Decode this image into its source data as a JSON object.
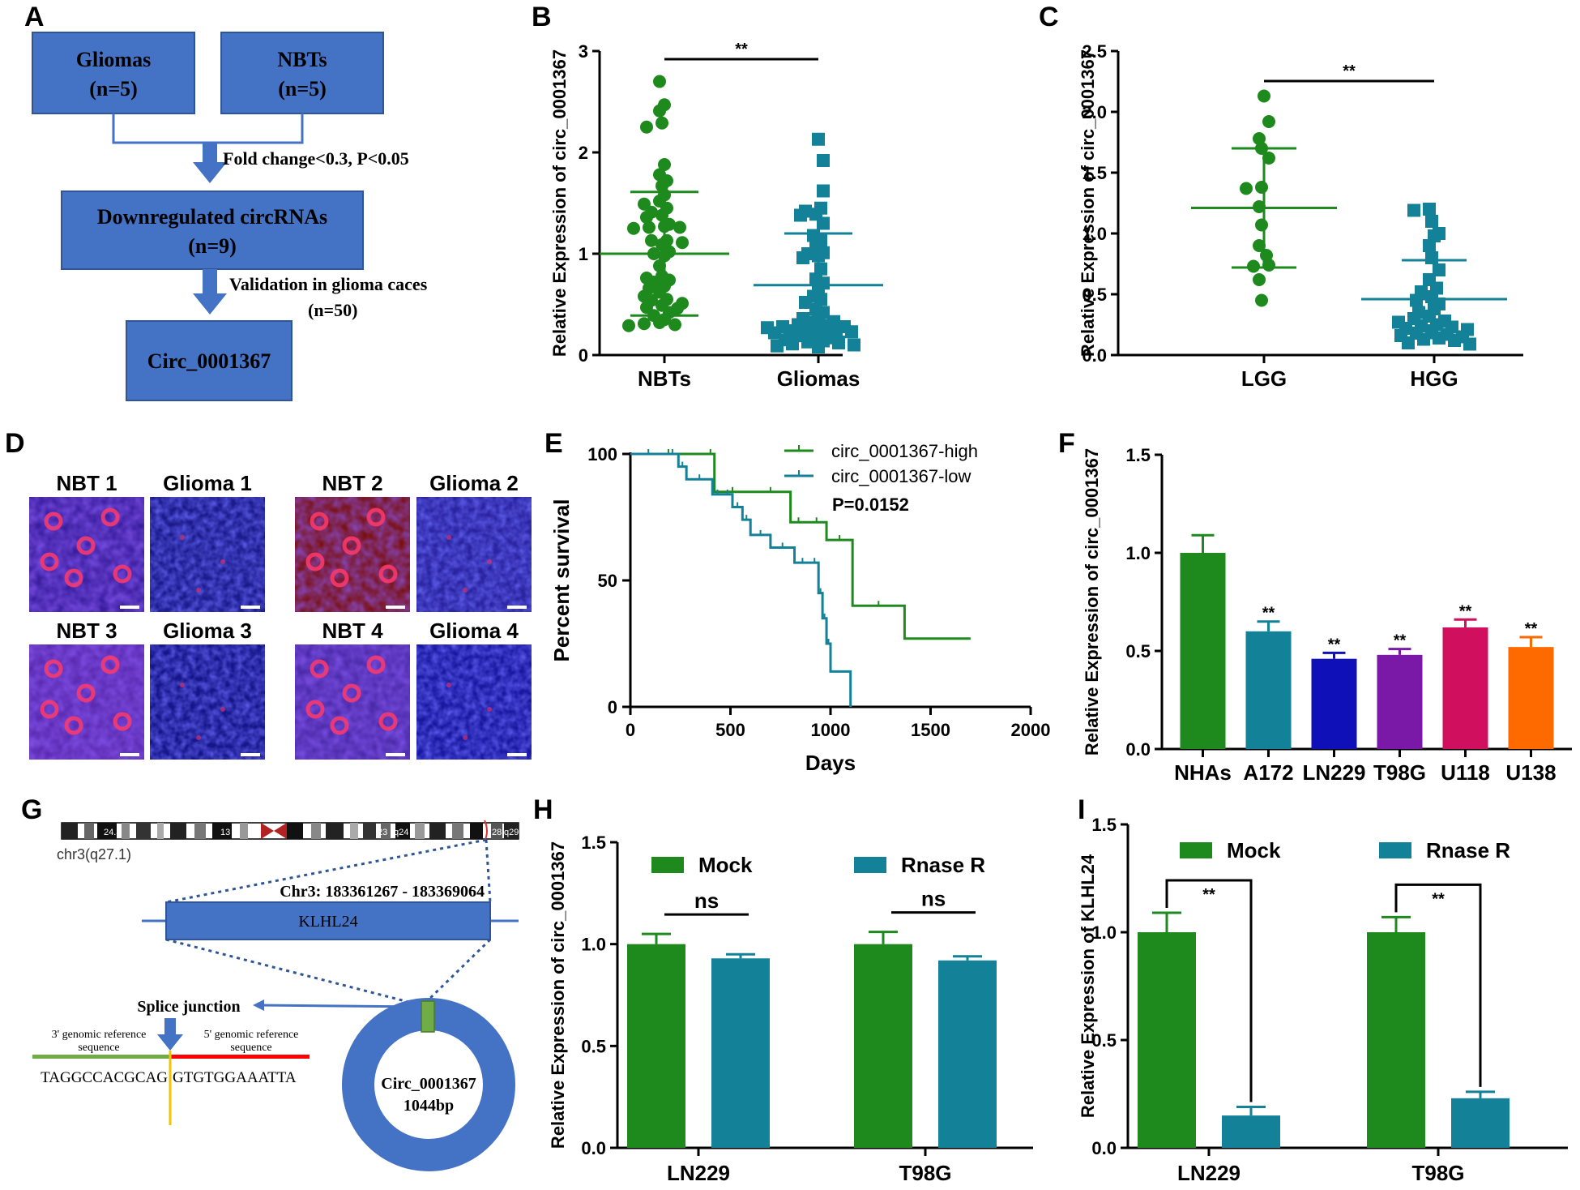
{
  "colors": {
    "green": "#1e8a1e",
    "teal": "#138197",
    "flow_box": "#4472c4",
    "bar_blue": "#1010b8",
    "bar_purple": "#7a18a8",
    "bar_pink": "#d0105e",
    "bar_orange": "#ff6a00",
    "junction_yellow": "#f2c500",
    "ref_green": "#70ad47",
    "ref_red": "#ff0000"
  },
  "panel_labels": [
    "A",
    "B",
    "C",
    "D",
    "E",
    "F",
    "G",
    "H",
    "I"
  ],
  "flowchart": {
    "box1": [
      "Gliomas",
      "(n=5)"
    ],
    "box2": [
      "NBTs",
      "(n=5)"
    ],
    "step1": "Fold change<0.3, P<0.05",
    "box3": [
      "Downregulated circRNAs",
      "(n=9)"
    ],
    "step2": [
      "Validation in glioma caces",
      "(n=50)"
    ],
    "box4": "Circ_0001367"
  },
  "images": {
    "labels": [
      "NBT 1",
      "Glioma 1",
      "NBT 2",
      "Glioma 2",
      "NBT 3",
      "Glioma 3",
      "NBT 4",
      "Glioma 4"
    ]
  },
  "diagram": {
    "chrom_label": "chr3(q27.1)",
    "band_labels": [
      "24.3",
      "13",
      "23",
      "q24",
      "28",
      "q29"
    ],
    "coords": "Chr3: 183361267 - 183369064",
    "gene": "KLHL24",
    "splice_junction": "Splice junction",
    "ref3": [
      "3' genomic reference",
      "sequence"
    ],
    "ref5": [
      "5' genomic reference",
      "sequence"
    ],
    "seq_left": "TAGGCCACGCAG",
    "seq_right": "GTGTGGAAATTA",
    "circ_name": "Circ_0001367",
    "circ_size": "1044bp"
  },
  "chart_data": [
    {
      "panel": "B",
      "type": "scatter",
      "ylabel": "Relative Expression of circ_0001367",
      "ylim": [
        0,
        3
      ],
      "yticks": [
        "0",
        "1",
        "2",
        "3"
      ],
      "categories": [
        "NBTs",
        "Gliomas"
      ],
      "means": [
        1.0,
        0.69
      ],
      "sd": [
        0.61,
        0.51
      ],
      "significance": "**",
      "series": [
        {
          "name": "NBTs",
          "values": [
            2.7,
            2.47,
            2.41,
            2.29,
            2.25,
            1.88,
            1.78,
            1.72,
            1.67,
            1.58,
            1.52,
            1.49,
            1.45,
            1.41,
            1.38,
            1.36,
            1.29,
            1.27,
            1.26,
            1.26,
            1.25,
            1.13,
            1.13,
            1.11,
            1.09,
            1.02,
            1.0,
            0.98,
            0.88,
            0.78,
            0.76,
            0.74,
            0.72,
            0.68,
            0.66,
            0.62,
            0.58,
            0.55,
            0.54,
            0.51,
            0.49,
            0.47,
            0.46,
            0.42,
            0.39,
            0.35,
            0.32,
            0.31,
            0.3,
            0.29
          ]
        },
        {
          "name": "Gliomas",
          "values": [
            2.13,
            1.92,
            1.62,
            1.45,
            1.42,
            1.39,
            1.38,
            1.3,
            1.18,
            1.13,
            1.09,
            1.01,
            1.0,
            0.98,
            0.96,
            0.85,
            0.75,
            0.71,
            0.65,
            0.58,
            0.55,
            0.52,
            0.45,
            0.42,
            0.38,
            0.36,
            0.33,
            0.32,
            0.3,
            0.29,
            0.28,
            0.28,
            0.27,
            0.26,
            0.25,
            0.25,
            0.24,
            0.23,
            0.22,
            0.2,
            0.19,
            0.17,
            0.15,
            0.14,
            0.13,
            0.12,
            0.11,
            0.1,
            0.09,
            0.08
          ]
        }
      ]
    },
    {
      "panel": "C",
      "type": "scatter",
      "ylabel": "Relative Expression of circ_0001367",
      "ylim": [
        0,
        2.5
      ],
      "yticks": [
        "0.0",
        "0.5",
        "1.0",
        "1.5",
        "2.0",
        "2.5"
      ],
      "categories": [
        "LGG",
        "HGG"
      ],
      "means": [
        1.21,
        0.46
      ],
      "sd": [
        0.49,
        0.32
      ],
      "significance": "**",
      "series": [
        {
          "name": "LGG",
          "values": [
            2.13,
            1.92,
            1.78,
            1.7,
            1.62,
            1.38,
            1.37,
            1.22,
            1.07,
            0.9,
            0.82,
            0.74,
            0.73,
            0.62,
            0.45
          ]
        },
        {
          "name": "HGG",
          "values": [
            1.2,
            1.19,
            1.1,
            1.0,
            0.98,
            0.9,
            0.8,
            0.7,
            0.62,
            0.55,
            0.52,
            0.48,
            0.45,
            0.42,
            0.38,
            0.35,
            0.32,
            0.3,
            0.28,
            0.27,
            0.25,
            0.24,
            0.23,
            0.22,
            0.21,
            0.2,
            0.18,
            0.17,
            0.16,
            0.15,
            0.14,
            0.13,
            0.12,
            0.1,
            0.09
          ]
        }
      ]
    },
    {
      "panel": "E",
      "type": "line",
      "xlabel": "Days",
      "ylabel": "Percent survival",
      "xlim": [
        0,
        2000
      ],
      "ylim": [
        0,
        100
      ],
      "xticks": [
        "0",
        "500",
        "1000",
        "1500",
        "2000"
      ],
      "yticks": [
        "0",
        "50",
        "100"
      ],
      "pvalue": "P=0.0152",
      "series": [
        {
          "name": "circ_0001367-high",
          "x": [
            0,
            380,
            420,
            600,
            800,
            880,
            980,
            1110,
            1370,
            1700
          ],
          "y": [
            100,
            100,
            85,
            85,
            73,
            73,
            66,
            40,
            27,
            27
          ]
        },
        {
          "name": "circ_0001367-low",
          "x": [
            0,
            180,
            240,
            280,
            410,
            460,
            510,
            560,
            600,
            700,
            820,
            900,
            940,
            960,
            980,
            1000,
            1100
          ],
          "y": [
            100,
            100,
            95,
            90,
            84,
            84,
            79,
            74,
            68,
            63,
            57,
            57,
            45,
            35,
            25,
            14,
            0
          ]
        }
      ]
    },
    {
      "panel": "F",
      "type": "bar",
      "ylabel": "Relative Expression of circ_0001367",
      "ylim": [
        0,
        1.5
      ],
      "yticks": [
        "0.0",
        "0.5",
        "1.0",
        "1.5"
      ],
      "categories": [
        "NHAs",
        "A172",
        "LN229",
        "T98G",
        "U118",
        "U138"
      ],
      "values": [
        1.0,
        0.6,
        0.46,
        0.48,
        0.62,
        0.52
      ],
      "errors": [
        0.09,
        0.05,
        0.03,
        0.03,
        0.04,
        0.05
      ],
      "significance": [
        "",
        "**",
        "**",
        "**",
        "**",
        "**"
      ]
    },
    {
      "panel": "H",
      "type": "bar",
      "ylabel": "Relative Expression of circ_0001367",
      "ylim": [
        0,
        1.5
      ],
      "yticks": [
        "0.0",
        "0.5",
        "1.0",
        "1.5"
      ],
      "categories": [
        "LN229",
        "T98G"
      ],
      "series": [
        {
          "name": "Mock",
          "values": [
            1.0,
            1.0
          ],
          "errors": [
            0.05,
            0.06
          ]
        },
        {
          "name": "Rnase R",
          "values": [
            0.93,
            0.92
          ],
          "errors": [
            0.02,
            0.02
          ]
        }
      ],
      "significance": [
        "ns",
        "ns"
      ]
    },
    {
      "panel": "I",
      "type": "bar",
      "ylabel": "Relative Expression of KLHL24",
      "ylim": [
        0,
        1.5
      ],
      "yticks": [
        "0.0",
        "0.5",
        "1.0",
        "1.5"
      ],
      "categories": [
        "LN229",
        "T98G"
      ],
      "series": [
        {
          "name": "Mock",
          "values": [
            1.0,
            1.0
          ],
          "errors": [
            0.09,
            0.07
          ]
        },
        {
          "name": "Rnase R",
          "values": [
            0.15,
            0.23
          ],
          "errors": [
            0.04,
            0.03
          ]
        }
      ],
      "significance": [
        "**",
        "**"
      ]
    }
  ]
}
